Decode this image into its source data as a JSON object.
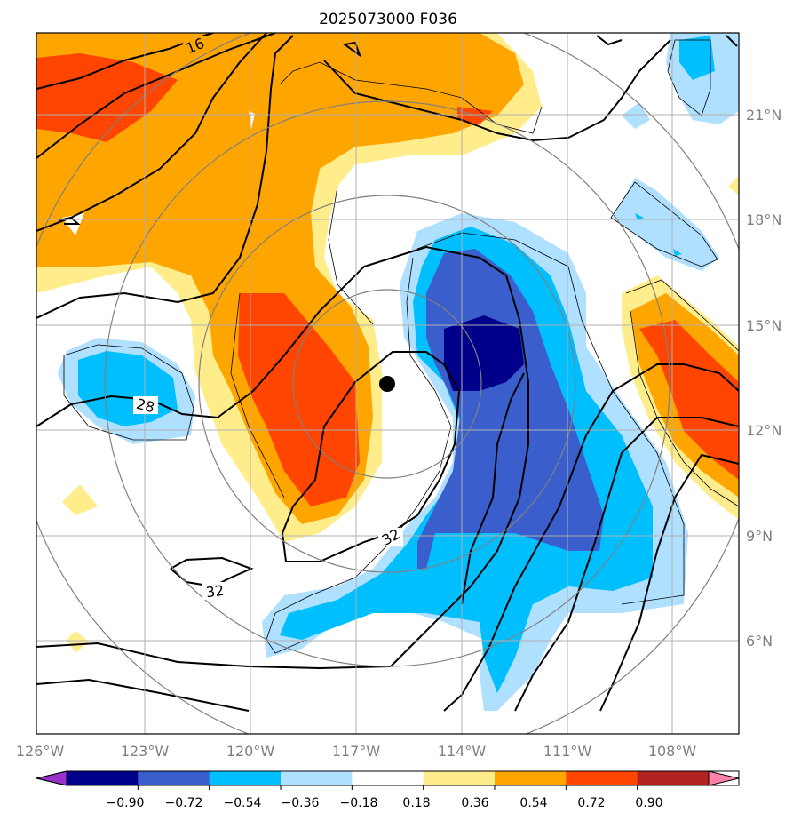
{
  "title": "2025073000 F036",
  "lon_ticks": [
    "126°W",
    "123°W",
    "120°W",
    "117°W",
    "114°W",
    "111°W",
    "108°W"
  ],
  "lat_ticks": [
    "21°N",
    "18°N",
    "15°N",
    "12°N",
    "9°N",
    "6°N"
  ],
  "contour_labels": [
    "16",
    "28",
    "32",
    "32"
  ],
  "colorbar": {
    "tick_labels": [
      "−0.90",
      "−0.72",
      "−0.54",
      "−0.36",
      "−0.18",
      "0.18",
      "0.36",
      "0.54",
      "0.72",
      "0.90"
    ],
    "colors": [
      "#9932cc",
      "#00008b",
      "#3a5fcd",
      "#00bfff",
      "#b0e0ff",
      "#ffffff",
      "#ffec8b",
      "#ffa500",
      "#ff4500",
      "#b22222",
      "#ff82ab"
    ]
  },
  "storm_center": {
    "lon": -116.0,
    "lat": 13.3
  }
}
